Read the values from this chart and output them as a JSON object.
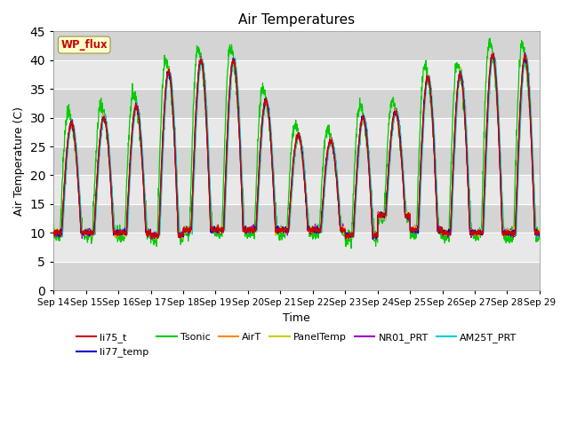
{
  "title": "Air Temperatures",
  "xlabel": "Time",
  "ylabel": "Air Temperature (C)",
  "ylim": [
    0,
    45
  ],
  "yticks": [
    0,
    5,
    10,
    15,
    20,
    25,
    30,
    35,
    40,
    45
  ],
  "x_tick_labels": [
    "Sep 14",
    "Sep 15",
    "Sep 16",
    "Sep 17",
    "Sep 18",
    "Sep 19",
    "Sep 20",
    "Sep 21",
    "Sep 22",
    "Sep 23",
    "Sep 24",
    "Sep 25",
    "Sep 26",
    "Sep 27",
    "Sep 28",
    "Sep 29"
  ],
  "series_colors": {
    "li75_t": "#cc0000",
    "li77_temp": "#0000cc",
    "Tsonic": "#00cc00",
    "AirT": "#ff8800",
    "PanelTemp": "#cccc00",
    "NR01_PRT": "#9900cc",
    "AM25T_PRT": "#00cccc"
  },
  "annotation_text": "WP_flux",
  "annotation_color": "#cc0000",
  "annotation_bg": "#ffffcc",
  "band_light": "#ebebeb",
  "band_dark": "#d8d8d8",
  "plot_bg": "#e0e0e0"
}
